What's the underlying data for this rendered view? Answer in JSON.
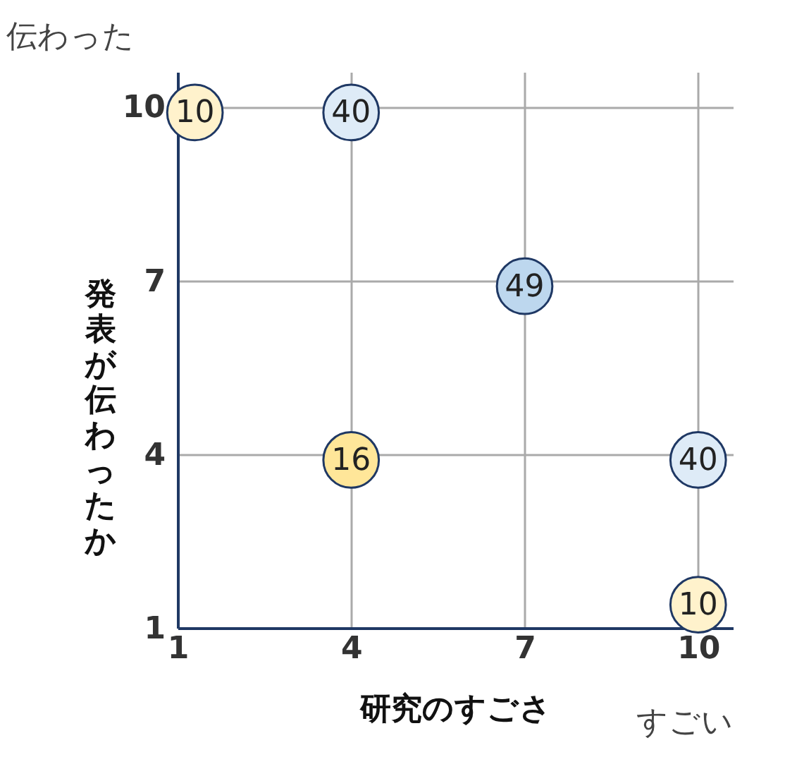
{
  "chart_data": {
    "type": "scatter",
    "xlabel": "研究のすごさ",
    "ylabel": "発表が伝わったか",
    "annotations": [
      "伝わった",
      "すごい",
      {
        "text": "10",
        "x": 1.3,
        "y": 9.9
      },
      {
        "text": "40",
        "x": 4,
        "y": 9.9
      },
      {
        "text": "49",
        "x": 7,
        "y": 6.9
      },
      {
        "text": "16",
        "x": 4,
        "y": 3.9
      },
      {
        "text": "40",
        "x": 10,
        "y": 3.9
      },
      {
        "text": "10",
        "x": 10,
        "y": 1.4
      }
    ],
    "x": [
      1.3,
      4,
      7,
      4,
      10,
      10
    ],
    "values": [
      9.9,
      9.9,
      6.9,
      3.9,
      3.9,
      1.4
    ],
    "colors": [
      "#fff2cc",
      "#deebf7",
      "#bdd7ee",
      "#ffe699",
      "#deebf7",
      "#fff2cc"
    ],
    "xlim": [
      1,
      10.6
    ],
    "ylim": [
      1,
      10.6
    ],
    "xticks": [
      1,
      4,
      7,
      10
    ],
    "yticks": [
      1,
      4,
      7,
      10
    ],
    "grid": true,
    "marker": "circle"
  }
}
